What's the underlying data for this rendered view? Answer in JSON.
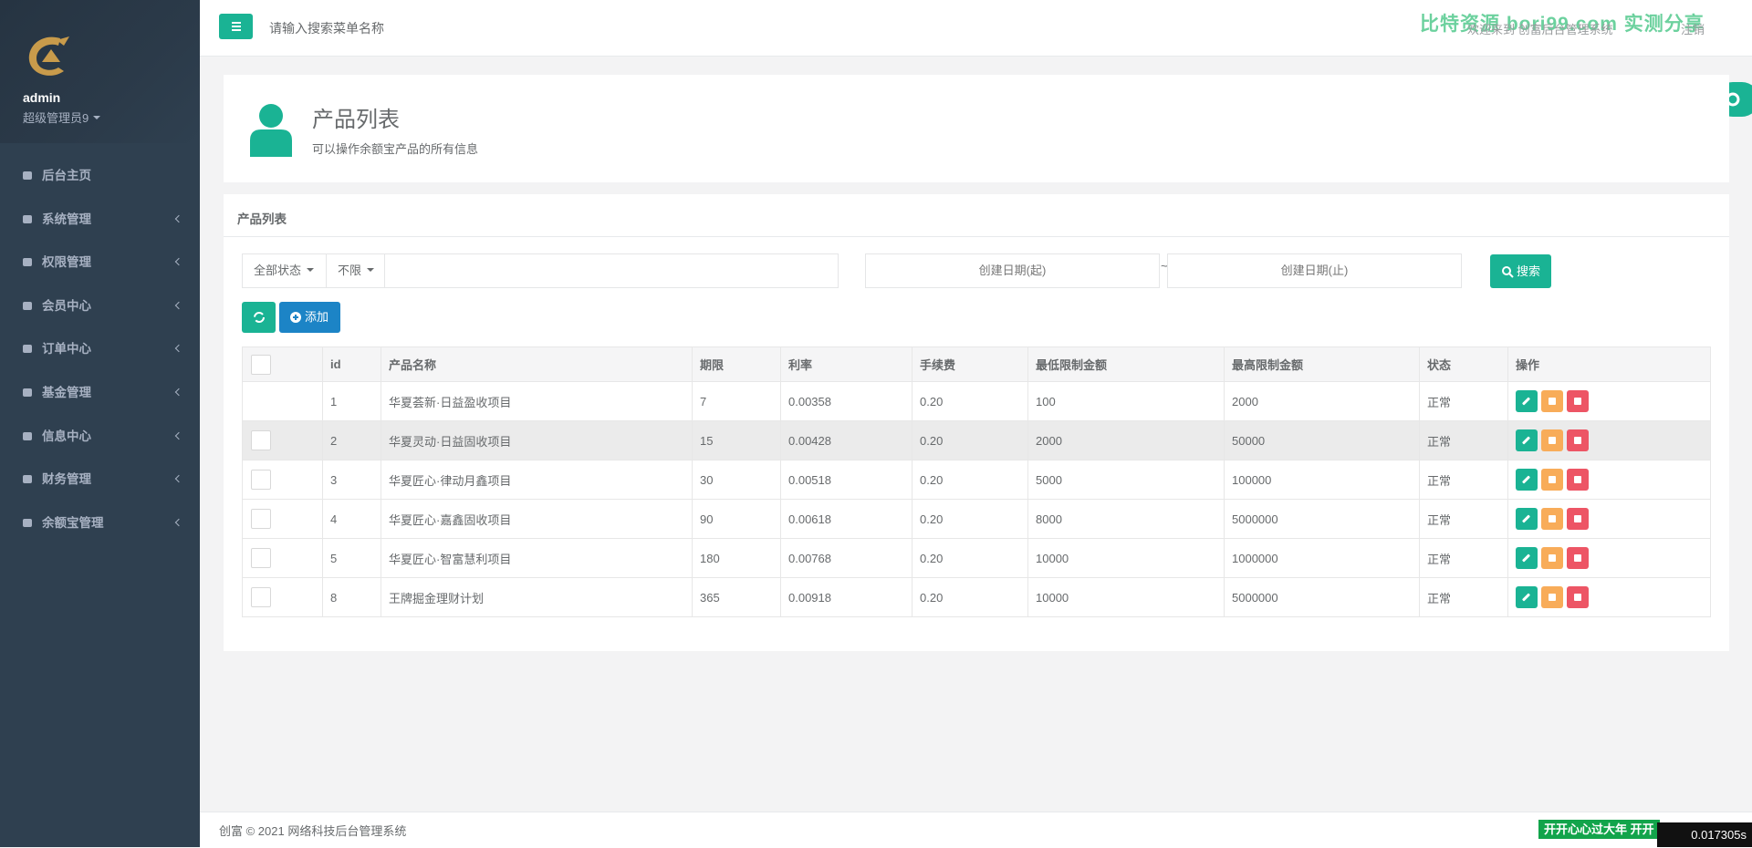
{
  "sidebar": {
    "username": "admin",
    "role": "超级管理员9",
    "menu": [
      "后台主页",
      "系统管理",
      "权限管理",
      "会员中心",
      "订单中心",
      "基金管理",
      "信息中心",
      "财务管理",
      "余额宝管理"
    ]
  },
  "topbar": {
    "search_placeholder": "请输入搜索菜单名称",
    "welcome": "欢迎来到 创富后台管理系统",
    "logout": "注销",
    "watermark": "比特资源 bori99.com 实测分享"
  },
  "page_header": {
    "title": "产品列表",
    "subtitle": "可以操作余额宝产品的所有信息"
  },
  "panel": {
    "title": "产品列表",
    "filters": {
      "status": "全部状态",
      "limit": "不限",
      "date_start": "创建日期(起)",
      "date_sep": "~",
      "date_end": "创建日期(止)",
      "search": "搜索",
      "add": "添加"
    }
  },
  "table": {
    "columns": [
      "id",
      "产品名称",
      "期限",
      "利率",
      "手续费",
      "最低限制金额",
      "最高限制金额",
      "状态",
      "操作"
    ],
    "rows": [
      [
        "1",
        "华夏荟新·日益盈收项目",
        "7",
        "0.00358",
        "0.20",
        "100",
        "2000",
        "正常"
      ],
      [
        "2",
        "华夏灵动·日益固收项目",
        "15",
        "0.00428",
        "0.20",
        "2000",
        "50000",
        "正常"
      ],
      [
        "3",
        "华夏匠心·律动月鑫项目",
        "30",
        "0.00518",
        "0.20",
        "5000",
        "100000",
        "正常"
      ],
      [
        "4",
        "华夏匠心·嘉鑫固收项目",
        "90",
        "0.00618",
        "0.20",
        "8000",
        "5000000",
        "正常"
      ],
      [
        "5",
        "华夏匠心·智富慧利项目",
        "180",
        "0.00768",
        "0.20",
        "10000",
        "1000000",
        "正常"
      ],
      [
        "8",
        "王牌掘金理财计划",
        "365",
        "0.00918",
        "0.20",
        "10000",
        "5000000",
        "正常"
      ]
    ]
  },
  "footer": {
    "copyright": "创富 © 2021 网络科技后台管理系统",
    "banner": "开开心心过大年 开开",
    "timing": "0.017305s"
  }
}
